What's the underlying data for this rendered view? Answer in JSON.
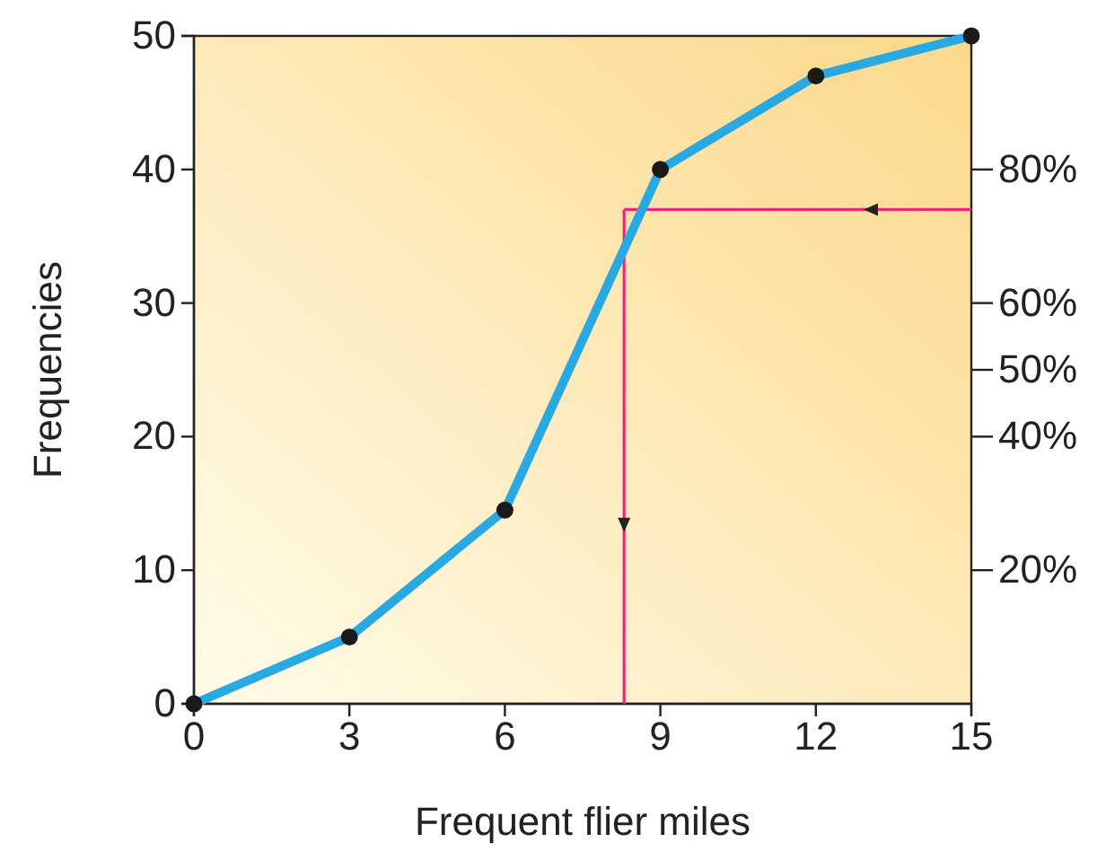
{
  "chart_data": {
    "type": "line",
    "xlabel": "Frequent flier miles",
    "ylabel": "Frequencies",
    "x": [
      0,
      3,
      6,
      9,
      12,
      15
    ],
    "series": [
      {
        "color": "#29a9e1",
        "values": [
          0,
          5,
          14.5,
          40,
          47,
          50
        ]
      }
    ],
    "xlim": [
      0,
      15
    ],
    "xticks": [
      0,
      3,
      6,
      9,
      12,
      15
    ],
    "ylim": [
      0,
      50
    ],
    "yticks": [
      0,
      10,
      20,
      30,
      40,
      50
    ],
    "y2lim": [
      0,
      100
    ],
    "y2ticks": [
      {
        "value": 20,
        "label": "20%"
      },
      {
        "value": 40,
        "label": "40%"
      },
      {
        "value": 50,
        "label": "50%"
      },
      {
        "value": 60,
        "label": "60%"
      },
      {
        "value": 80,
        "label": "80%"
      }
    ],
    "ref_lines": [
      {
        "axis": "x",
        "value": 8.3,
        "color": "#e8297a"
      },
      {
        "axis": "y2",
        "value": 74,
        "color": "#e8297a"
      }
    ],
    "marker": "circle",
    "line_style": "solid",
    "grid": false
  }
}
